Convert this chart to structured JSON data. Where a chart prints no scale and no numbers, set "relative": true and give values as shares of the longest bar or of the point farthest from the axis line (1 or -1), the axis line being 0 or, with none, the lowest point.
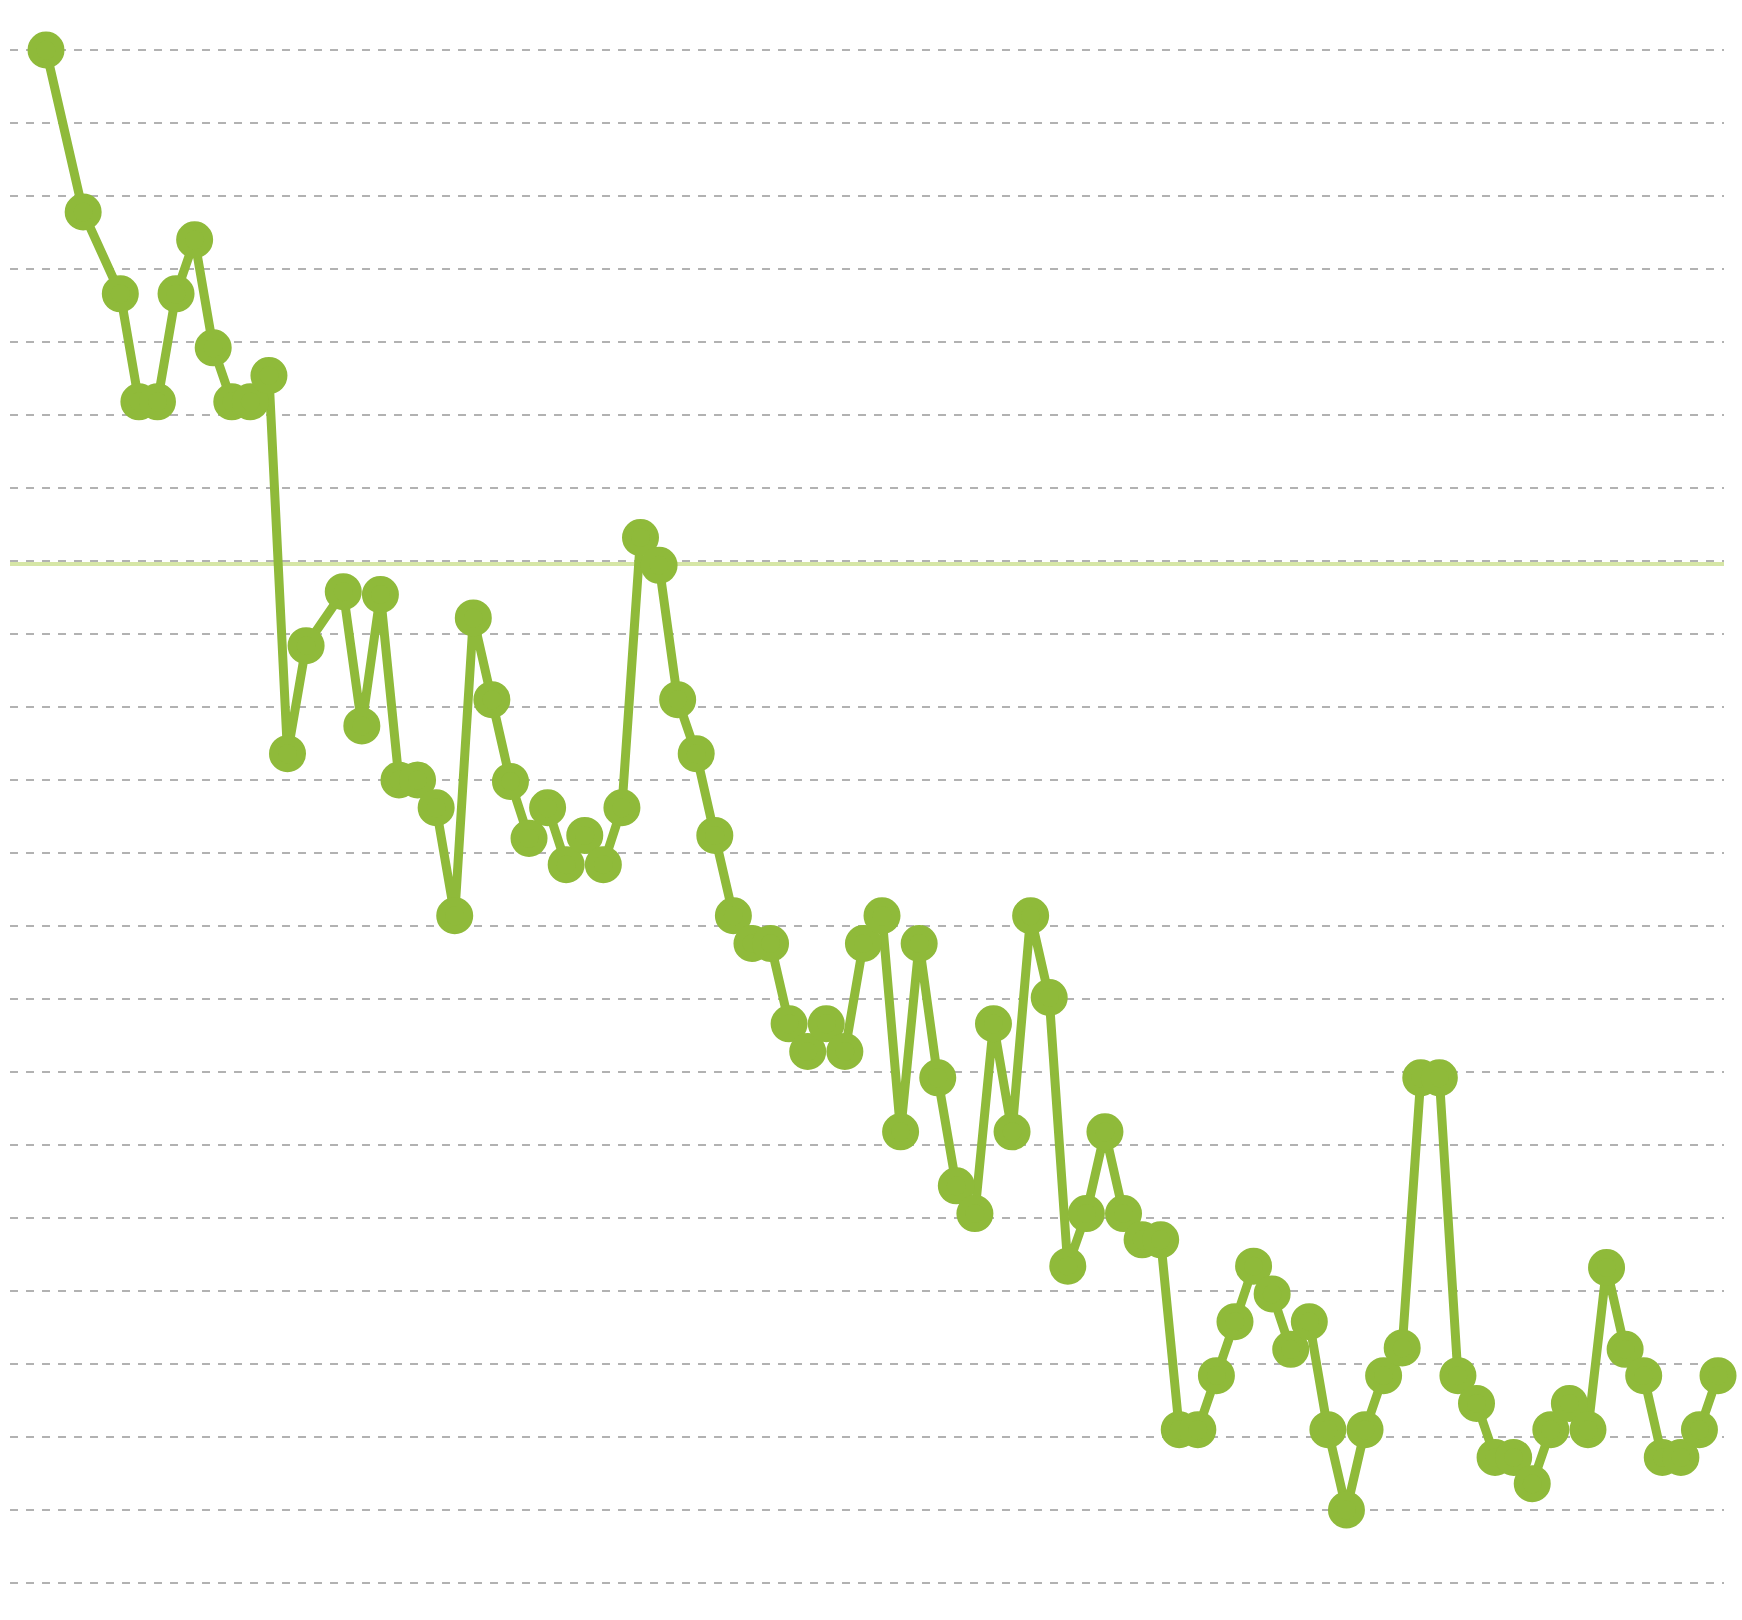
{
  "chart_data": {
    "type": "line",
    "relative": true,
    "categories": [
      null,
      null,
      null,
      null,
      null,
      null,
      null,
      null,
      null,
      null,
      null,
      null,
      null,
      null,
      null,
      null,
      null,
      null,
      null,
      null,
      null,
      null,
      null,
      null,
      null,
      null,
      null,
      null,
      null,
      null,
      null,
      null,
      null,
      null,
      null,
      null,
      null,
      null,
      null,
      null,
      null,
      null,
      null,
      null,
      null,
      null,
      null,
      null,
      null,
      null,
      null,
      null,
      null,
      null,
      null,
      null,
      null,
      null,
      null,
      null,
      null,
      null,
      null,
      null,
      null,
      null,
      null,
      null,
      null,
      null,
      null,
      null,
      null,
      null,
      null,
      null,
      null,
      null,
      null,
      null,
      null,
      null,
      null,
      null,
      null,
      null,
      null,
      null,
      null,
      null,
      null
    ],
    "series": [
      {
        "color": "#8fba3a",
        "values": [
          1.0,
          null,
          0.889,
          null,
          0.833,
          0.759,
          0.759,
          0.833,
          0.87,
          0.796,
          0.759,
          0.759,
          0.777,
          0.518,
          0.592,
          null,
          0.629,
          0.537,
          0.627,
          0.5,
          0.5,
          0.481,
          0.407,
          0.611,
          0.555,
          0.499,
          0.46,
          0.481,
          0.442,
          0.462,
          0.442,
          0.481,
          0.666,
          0.647,
          0.555,
          0.518,
          0.462,
          0.407,
          0.388,
          0.388,
          0.333,
          0.314,
          0.333,
          0.314,
          0.388,
          0.407,
          0.259,
          0.388,
          0.296,
          0.222,
          0.203,
          0.333,
          0.259,
          0.407,
          0.351,
          0.167,
          0.203,
          0.259,
          0.203,
          0.185,
          0.185,
          0.055,
          0.055,
          0.092,
          0.129,
          0.167,
          0.148,
          0.11,
          0.129,
          0.055,
          0,
          0.055,
          0.092,
          0.111,
          0.296,
          0.296,
          0.092,
          0.073,
          0.036,
          0.036,
          0.018,
          0.055,
          0.073,
          0.055,
          0.166,
          0.11,
          0.092,
          0.036,
          0.036,
          0.055,
          0.092
        ]
      }
    ],
    "grid": "y",
    "marker": "circle",
    "line_style": "solid",
    "ref_lines": [
      {
        "axis": "y",
        "value": 0.648,
        "color": "#d6e6a6",
        "line_style": "solid"
      }
    ]
  }
}
